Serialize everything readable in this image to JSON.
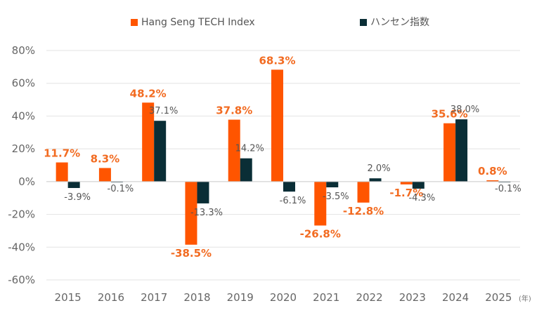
{
  "chart_data": {
    "type": "bar",
    "categories": [
      "2015",
      "2016",
      "2017",
      "2018",
      "2019",
      "2020",
      "2021",
      "2022",
      "2023",
      "2024",
      "2025"
    ],
    "x_unit": "(年)",
    "series": [
      {
        "name": "Hang Seng TECH Index",
        "color": "#FF5500",
        "label_color": "#F26B21",
        "values": [
          11.7,
          8.3,
          48.2,
          -38.5,
          37.8,
          68.3,
          -26.8,
          -12.8,
          -1.7,
          35.6,
          0.8
        ],
        "labels": [
          "11.7%",
          "8.3%",
          "48.2%",
          "-38.5%",
          "37.8%",
          "68.3%",
          "-26.8%",
          "-12.8%",
          "-1.7%",
          "35.6%",
          "0.8%"
        ]
      },
      {
        "name": "ハンセン指数",
        "color": "#0A2E36",
        "label_color": "#555555",
        "values": [
          -3.9,
          -0.1,
          37.1,
          -13.3,
          14.2,
          -6.1,
          -3.5,
          2.0,
          -4.3,
          38.0,
          -0.1
        ],
        "labels": [
          "-3.9%",
          "-0.1%",
          "37.1%",
          "-13.3%",
          "14.2%",
          "-6.1%",
          "-3.5%",
          "2.0%",
          "-4.3%",
          "38.0%",
          "-0.1%"
        ]
      }
    ],
    "ylim": [
      -60,
      80
    ],
    "yticks": [
      80,
      60,
      40,
      20,
      0,
      -20,
      -40,
      -60
    ],
    "ytick_labels": [
      "80%",
      "60%",
      "40%",
      "20%",
      "0%",
      "-20%",
      "-40%",
      "-60%"
    ],
    "grid": true,
    "legend": "top-center"
  }
}
